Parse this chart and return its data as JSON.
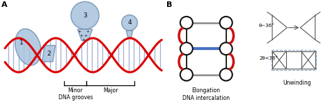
{
  "panel_a_label": "A",
  "panel_b_label": "B",
  "dna_color": "#dd0000",
  "binding_fill": "#aac4df",
  "binding_edge": "#7090b0",
  "intercalator_color": "#4472c4",
  "red_color": "#cc1111",
  "gray_color": "#888888",
  "black_color": "#111111",
  "minor_label1": "Minor",
  "minor_label2": "DNA grooves",
  "major_label": "Major",
  "elongation_label": "Elongation",
  "intercalation_label": "DNA intercalation",
  "unwinding_label": "Unwinding",
  "theta1_label": "θ~36°",
  "theta2_label": "2θ<36°",
  "label1": "1",
  "label2": "2",
  "label3": "3",
  "label4": "4"
}
